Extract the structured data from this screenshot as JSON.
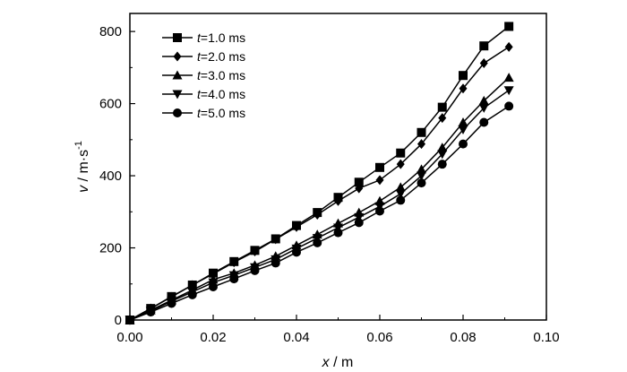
{
  "chart_data": {
    "type": "line",
    "xlabel_var": "x",
    "xlabel_unit": " / m",
    "ylabel_var": "v",
    "ylabel_unit": " / m·s",
    "ylabel_sup": "-1",
    "xlim": [
      0,
      0.1
    ],
    "ylim": [
      0,
      850
    ],
    "xticks": [
      0.0,
      0.02,
      0.04,
      0.06,
      0.08,
      0.1
    ],
    "xtick_labels": [
      "0.00",
      "0.02",
      "0.04",
      "0.06",
      "0.08",
      "0.10"
    ],
    "yticks": [
      0,
      200,
      400,
      600,
      800
    ],
    "ytick_labels": [
      "0",
      "200",
      "400",
      "600",
      "800"
    ],
    "grid": false,
    "legend_position": "top-left",
    "x": [
      0.0,
      0.005,
      0.01,
      0.015,
      0.02,
      0.025,
      0.03,
      0.035,
      0.04,
      0.045,
      0.05,
      0.055,
      0.06,
      0.065,
      0.07,
      0.075,
      0.08,
      0.085,
      0.091
    ],
    "series": [
      {
        "name": "t=1.0 ms",
        "var": "t",
        "rest": "=1.0 ms",
        "marker": "square",
        "values": [
          0,
          32,
          65,
          97,
          130,
          162,
          193,
          225,
          262,
          298,
          340,
          382,
          423,
          463,
          520,
          590,
          678,
          760,
          814
        ]
      },
      {
        "name": "t=2.0 ms",
        "var": "t",
        "rest": "=2.0 ms",
        "marker": "diamond",
        "values": [
          0,
          32,
          64,
          97,
          128,
          160,
          190,
          224,
          258,
          292,
          330,
          365,
          388,
          432,
          488,
          560,
          642,
          712,
          757
        ]
      },
      {
        "name": "t=3.0 ms",
        "var": "t",
        "rest": "=3.0 ms",
        "marker": "triangle-up",
        "values": [
          0,
          27,
          55,
          83,
          112,
          130,
          152,
          177,
          207,
          237,
          268,
          298,
          330,
          368,
          418,
          478,
          548,
          608,
          672
        ]
      },
      {
        "name": "t=4.0 ms",
        "var": "t",
        "rest": "=4.0 ms",
        "marker": "triangle-down",
        "values": [
          0,
          25,
          52,
          78,
          104,
          124,
          146,
          168,
          198,
          227,
          256,
          285,
          315,
          350,
          400,
          460,
          528,
          588,
          637
        ]
      },
      {
        "name": "t=5.0 ms",
        "var": "t",
        "rest": "=5.0 ms",
        "marker": "circle",
        "values": [
          0,
          22,
          46,
          70,
          92,
          114,
          137,
          158,
          188,
          214,
          242,
          270,
          302,
          332,
          380,
          432,
          488,
          548,
          593
        ]
      }
    ]
  }
}
